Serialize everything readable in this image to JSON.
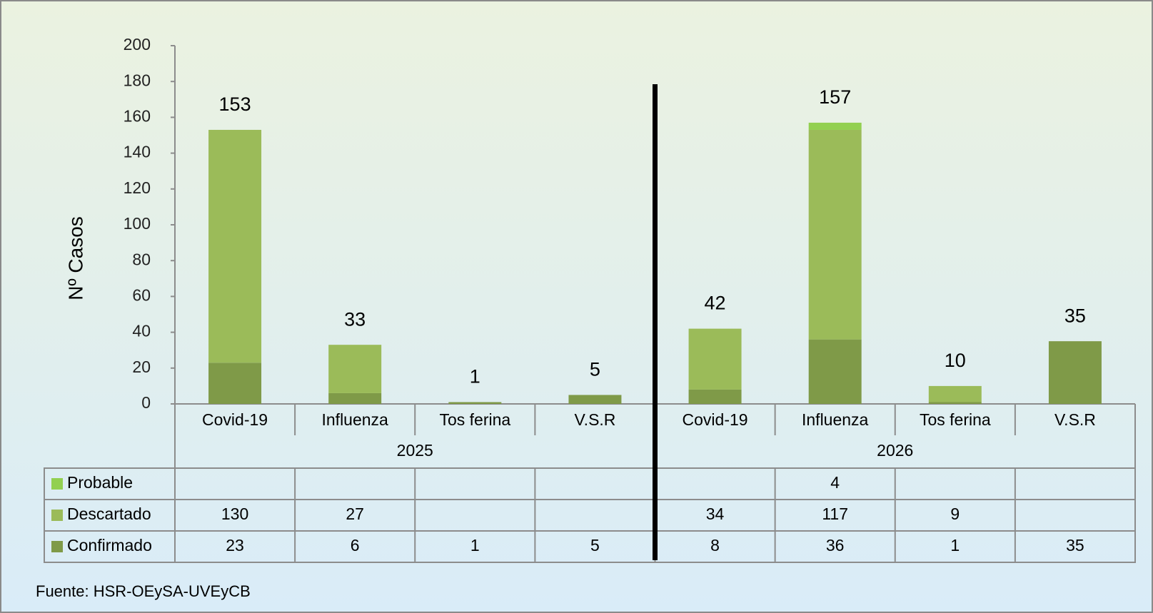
{
  "chart_data": {
    "type": "stacked_bar",
    "y_label": "Nº Casos",
    "categories": [
      "Covid-19",
      "Influenza",
      "Tos ferina",
      "V.S.R",
      "Covid-19",
      "Influenza",
      "Tos ferina",
      "V.S.R"
    ],
    "groups": [
      "2025",
      "2026"
    ],
    "series": [
      {
        "name": "Probable",
        "color": "#92d050",
        "values": [
          null,
          null,
          null,
          null,
          null,
          4,
          null,
          null
        ]
      },
      {
        "name": "Descartado",
        "color": "#9bbb59",
        "values": [
          130,
          27,
          null,
          null,
          34,
          117,
          9,
          null
        ]
      },
      {
        "name": "Confirmado",
        "color": "#7f9a48",
        "values": [
          23,
          6,
          1,
          5,
          8,
          36,
          1,
          35
        ]
      }
    ],
    "total_labels": [
      153,
      33,
      1,
      5,
      42,
      157,
      10,
      35
    ],
    "ylim": [
      0,
      200
    ],
    "yticks": [
      0,
      20,
      40,
      60,
      80,
      100,
      120,
      140,
      160,
      180,
      200
    ],
    "source": "Fuente:  HSR-OEySA-UVEyCB"
  }
}
